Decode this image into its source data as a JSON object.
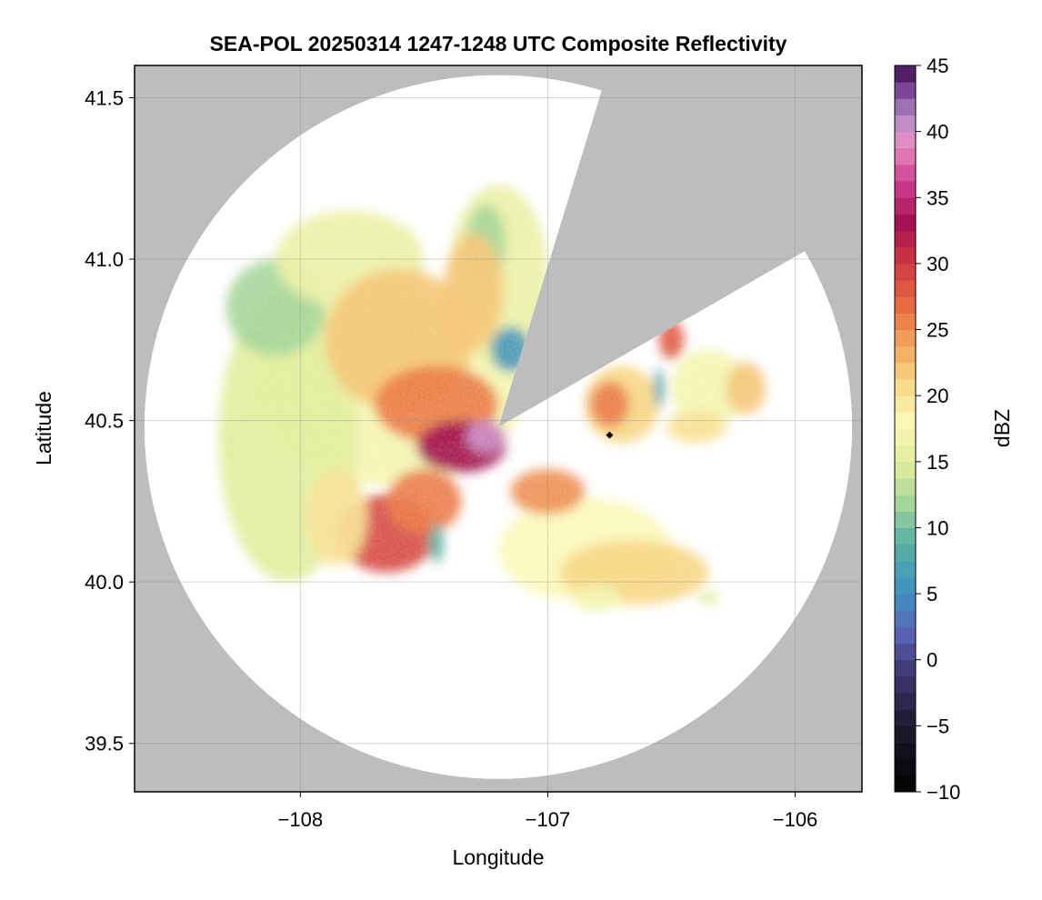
{
  "chart_data": {
    "type": "heatmap",
    "title": "SEA-POL 20250314 1247-1248 UTC Composite Reflectivity",
    "xlabel": "Longitude",
    "ylabel": "Latitude",
    "xlim": [
      -108.67,
      -105.73
    ],
    "ylim": [
      39.35,
      41.6
    ],
    "xticks": [
      -108,
      -107,
      -106
    ],
    "xtick_labels": [
      "−108",
      "−107",
      "−106"
    ],
    "yticks": [
      39.5,
      40.0,
      40.5,
      41.0,
      41.5
    ],
    "ytick_labels": [
      "39.5",
      "40.0",
      "40.5",
      "41.0",
      "41.5"
    ],
    "grid": true,
    "background_color": "#bdbdbd",
    "radar": {
      "lon": -107.2,
      "lat": 40.48,
      "range_lon": 1.43,
      "range_lat": 1.09,
      "blocked_sectors_deg_from_north": [
        [
          17,
          60
        ]
      ]
    },
    "marker": {
      "lon": -106.75,
      "lat": 40.455,
      "color": "#000000"
    },
    "colorbar": {
      "label": "dBZ",
      "min": -10,
      "max": 45,
      "ticks": [
        -10,
        -5,
        0,
        5,
        10,
        15,
        20,
        25,
        30,
        35,
        40,
        45
      ],
      "tick_labels": [
        "−10",
        "−5",
        "0",
        "5",
        "10",
        "15",
        "20",
        "25",
        "30",
        "35",
        "40",
        "45"
      ],
      "colormap": "Spectral (reversed)",
      "stops": [
        {
          "v": -10,
          "c": "#000000"
        },
        {
          "v": -5,
          "c": "#1d1a2e"
        },
        {
          "v": -1,
          "c": "#3e3670"
        },
        {
          "v": 2,
          "c": "#5b63b3"
        },
        {
          "v": 5,
          "c": "#3f8fc1"
        },
        {
          "v": 9,
          "c": "#5bb3a4"
        },
        {
          "v": 12,
          "c": "#a7d69a"
        },
        {
          "v": 15,
          "c": "#e2ee9c"
        },
        {
          "v": 18,
          "c": "#fcf8b8"
        },
        {
          "v": 21,
          "c": "#f7d784"
        },
        {
          "v": 24,
          "c": "#f2a35a"
        },
        {
          "v": 27,
          "c": "#e7683f"
        },
        {
          "v": 30,
          "c": "#cf3a43"
        },
        {
          "v": 33,
          "c": "#a31050"
        },
        {
          "v": 36,
          "c": "#cc3b8e"
        },
        {
          "v": 39,
          "c": "#e98cc3"
        },
        {
          "v": 41,
          "c": "#b58fc6"
        },
        {
          "v": 43,
          "c": "#7f4a9a"
        },
        {
          "v": 45,
          "c": "#3d0c4f"
        }
      ]
    },
    "echo_regions": [
      {
        "lon": -107.65,
        "lat": 40.6,
        "rx": 0.55,
        "ry": 0.3,
        "dbz": 17
      },
      {
        "lon": -108.05,
        "lat": 40.45,
        "rx": 0.28,
        "ry": 0.45,
        "dbz": 15
      },
      {
        "lon": -108.1,
        "lat": 40.85,
        "rx": 0.2,
        "ry": 0.15,
        "dbz": 12
      },
      {
        "lon": -107.8,
        "lat": 41.0,
        "rx": 0.3,
        "ry": 0.15,
        "dbz": 16
      },
      {
        "lon": -107.2,
        "lat": 40.95,
        "rx": 0.2,
        "ry": 0.28,
        "dbz": 16
      },
      {
        "lon": -107.25,
        "lat": 41.05,
        "rx": 0.08,
        "ry": 0.12,
        "dbz": 12
      },
      {
        "lon": -107.3,
        "lat": 40.9,
        "rx": 0.12,
        "ry": 0.18,
        "dbz": 22
      },
      {
        "lon": -107.6,
        "lat": 40.75,
        "rx": 0.3,
        "ry": 0.22,
        "dbz": 22
      },
      {
        "lon": -107.45,
        "lat": 40.55,
        "rx": 0.25,
        "ry": 0.12,
        "dbz": 26
      },
      {
        "lon": -107.35,
        "lat": 40.42,
        "rx": 0.18,
        "ry": 0.08,
        "dbz": 33
      },
      {
        "lon": -107.25,
        "lat": 40.45,
        "rx": 0.08,
        "ry": 0.05,
        "dbz": 40
      },
      {
        "lon": -107.65,
        "lat": 40.15,
        "rx": 0.2,
        "ry": 0.12,
        "dbz": 29
      },
      {
        "lon": -107.5,
        "lat": 40.25,
        "rx": 0.15,
        "ry": 0.1,
        "dbz": 26
      },
      {
        "lon": -107.85,
        "lat": 40.2,
        "rx": 0.12,
        "ry": 0.15,
        "dbz": 20
      },
      {
        "lon": -106.85,
        "lat": 40.1,
        "rx": 0.35,
        "ry": 0.16,
        "dbz": 18
      },
      {
        "lon": -106.65,
        "lat": 40.03,
        "rx": 0.3,
        "ry": 0.1,
        "dbz": 21
      },
      {
        "lon": -107.0,
        "lat": 40.28,
        "rx": 0.15,
        "ry": 0.07,
        "dbz": 25
      },
      {
        "lon": -106.7,
        "lat": 40.55,
        "rx": 0.15,
        "ry": 0.12,
        "dbz": 21
      },
      {
        "lon": -106.75,
        "lat": 40.55,
        "rx": 0.08,
        "ry": 0.07,
        "dbz": 26
      },
      {
        "lon": -106.5,
        "lat": 40.75,
        "rx": 0.05,
        "ry": 0.06,
        "dbz": 28
      },
      {
        "lon": -106.35,
        "lat": 40.6,
        "rx": 0.15,
        "ry": 0.12,
        "dbz": 17
      },
      {
        "lon": -106.4,
        "lat": 40.48,
        "rx": 0.12,
        "ry": 0.05,
        "dbz": 20
      },
      {
        "lon": -106.2,
        "lat": 40.6,
        "rx": 0.08,
        "ry": 0.08,
        "dbz": 22
      },
      {
        "lon": -107.15,
        "lat": 40.72,
        "rx": 0.08,
        "ry": 0.07,
        "dbz": 6
      },
      {
        "lon": -106.55,
        "lat": 40.6,
        "rx": 0.02,
        "ry": 0.06,
        "dbz": 7
      },
      {
        "lon": -106.35,
        "lat": 39.95,
        "rx": 0.04,
        "ry": 0.02,
        "dbz": 15
      },
      {
        "lon": -106.8,
        "lat": 39.95,
        "rx": 0.1,
        "ry": 0.04,
        "dbz": 17
      },
      {
        "lon": -107.45,
        "lat": 40.12,
        "rx": 0.03,
        "ry": 0.06,
        "dbz": 9
      }
    ]
  }
}
